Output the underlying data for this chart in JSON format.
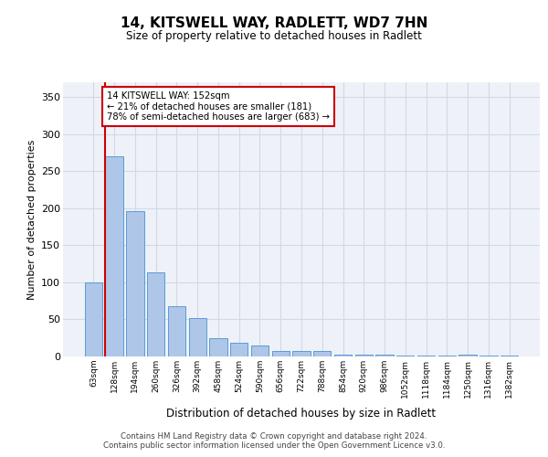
{
  "title": "14, KITSWELL WAY, RADLETT, WD7 7HN",
  "subtitle": "Size of property relative to detached houses in Radlett",
  "xlabel": "Distribution of detached houses by size in Radlett",
  "ylabel": "Number of detached properties",
  "categories": [
    "63sqm",
    "128sqm",
    "194sqm",
    "260sqm",
    "326sqm",
    "392sqm",
    "458sqm",
    "524sqm",
    "590sqm",
    "656sqm",
    "722sqm",
    "788sqm",
    "854sqm",
    "920sqm",
    "986sqm",
    "1052sqm",
    "1118sqm",
    "1184sqm",
    "1250sqm",
    "1316sqm",
    "1382sqm"
  ],
  "values": [
    100,
    270,
    196,
    113,
    68,
    52,
    25,
    18,
    15,
    8,
    8,
    8,
    3,
    3,
    2,
    1,
    1,
    1,
    2,
    1,
    1
  ],
  "bar_color": "#aec6e8",
  "bar_edge_color": "#5b9bd5",
  "grid_color": "#d0d8e8",
  "bg_color": "#eef2f8",
  "annotation_box_color": "#cc0000",
  "property_line_color": "#cc0000",
  "property_bin_index": 1,
  "annotation_text": "14 KITSWELL WAY: 152sqm\n← 21% of detached houses are smaller (181)\n78% of semi-detached houses are larger (683) →",
  "footer": "Contains HM Land Registry data © Crown copyright and database right 2024.\nContains public sector information licensed under the Open Government Licence v3.0.",
  "ylim": [
    0,
    370
  ],
  "yticks": [
    0,
    50,
    100,
    150,
    200,
    250,
    300,
    350
  ]
}
